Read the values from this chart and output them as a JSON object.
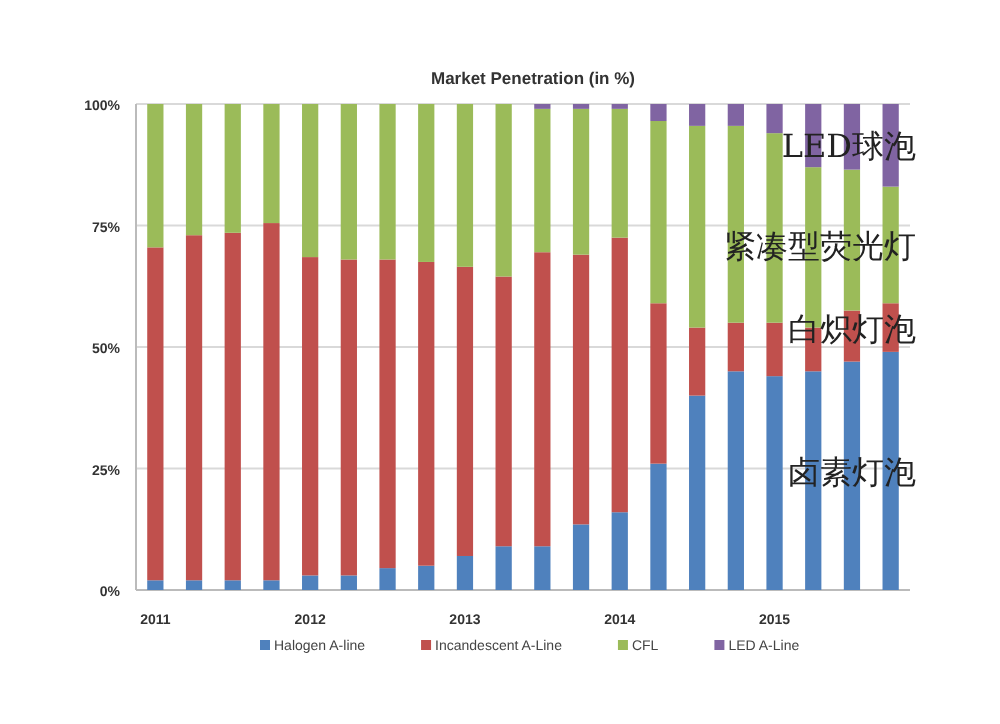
{
  "chart_data": {
    "type": "bar",
    "stacked": true,
    "title": "Market Penetration (in %)",
    "categories": [
      "2011",
      null,
      null,
      null,
      "2012",
      null,
      null,
      null,
      "2013",
      null,
      null,
      null,
      "2014",
      null,
      null,
      null,
      "2015",
      null,
      null,
      null
    ],
    "series": [
      {
        "name": "Halogen A-line",
        "color": "#4f81bd",
        "values": [
          2,
          2,
          2,
          2,
          3,
          3,
          4.5,
          5,
          7,
          9,
          9,
          13.5,
          16,
          26,
          40,
          45,
          44,
          45,
          47,
          49
        ]
      },
      {
        "name": "Incandescent A-Line",
        "color": "#c0504d",
        "values": [
          68.5,
          71,
          71.5,
          73.5,
          65.5,
          65,
          63.5,
          62.5,
          59.5,
          55.5,
          60.5,
          55.5,
          56.5,
          33,
          14,
          10,
          11,
          9,
          10.5,
          10
        ]
      },
      {
        "name": "CFL",
        "color": "#9bbb59",
        "values": [
          29.5,
          27,
          26.5,
          24.5,
          31.5,
          32,
          32,
          32.5,
          33.5,
          35.5,
          29.5,
          30,
          26.5,
          37.5,
          41.5,
          40.5,
          39,
          33,
          29,
          24
        ]
      },
      {
        "name": "LED A-Line",
        "color": "#8064a2",
        "values": [
          0,
          0,
          0,
          0,
          0,
          0,
          0,
          0,
          0,
          0,
          1,
          1,
          1,
          3.5,
          4.5,
          4.5,
          6,
          13,
          13.5,
          17
        ]
      }
    ],
    "ylim": [
      0,
      100
    ],
    "yticks": [
      {
        "value": 0,
        "label": "0%"
      },
      {
        "value": 25,
        "label": "25%"
      },
      {
        "value": 50,
        "label": "50%"
      },
      {
        "value": 75,
        "label": "75%"
      },
      {
        "value": 100,
        "label": "100%"
      }
    ],
    "grid": "y",
    "legend": "bottom",
    "annotations": [
      "LED球泡",
      "紧凑型荧光灯",
      "白炽灯泡",
      "卤素灯泡"
    ]
  }
}
